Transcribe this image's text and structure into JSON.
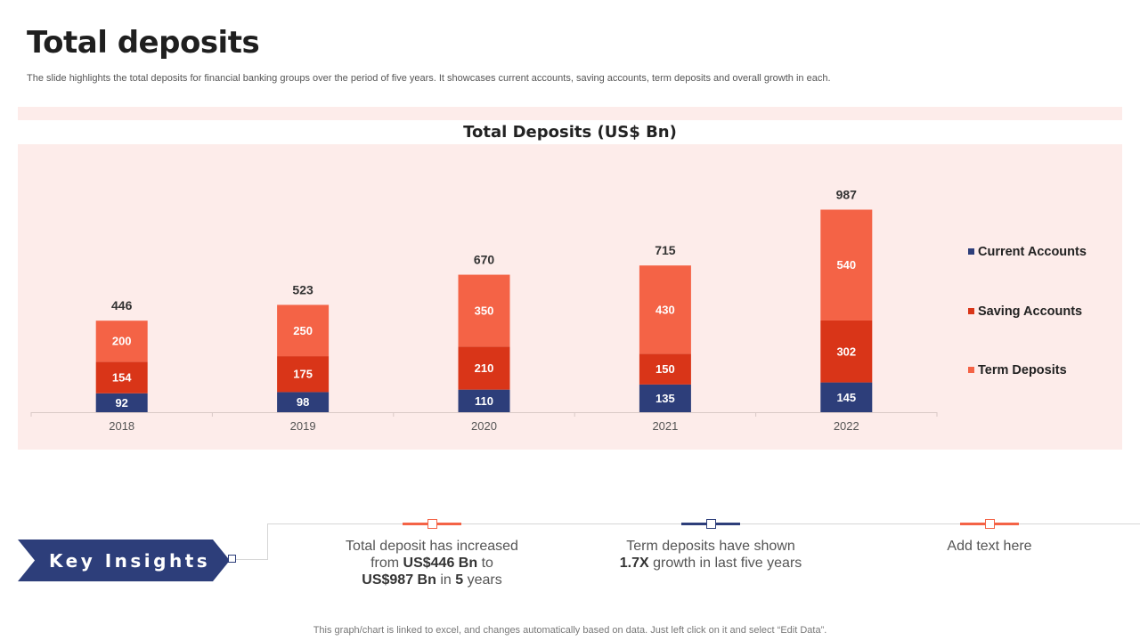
{
  "page": {
    "title": "Total deposits",
    "subtitle": "The slide highlights the total deposits for financial banking groups over the period of five years. It showcases current accounts, saving accounts, term deposits and overall growth in each.",
    "footnote": "This graph/chart is linked to excel,  and changes automatically based on data. Just left click on it and select “Edit Data”."
  },
  "colors": {
    "current": "#2d3e7a",
    "saving": "#d93518",
    "term": "#f46346",
    "panel": "#fdecea",
    "accent_red": "#f46346",
    "accent_blue": "#2d3e7a"
  },
  "chart_data": {
    "type": "bar",
    "stacked": true,
    "title": "Total Deposits (US$ Bn)",
    "xlabel": "",
    "ylabel": "",
    "categories": [
      "2018",
      "2019",
      "2020",
      "2021",
      "2022"
    ],
    "series": [
      {
        "name": "Current Accounts",
        "key": "current",
        "values": [
          92,
          98,
          110,
          135,
          145
        ]
      },
      {
        "name": "Saving Accounts",
        "key": "saving",
        "values": [
          154,
          175,
          210,
          150,
          302
        ]
      },
      {
        "name": "Term Deposits",
        "key": "term",
        "values": [
          200,
          250,
          350,
          430,
          540
        ]
      }
    ],
    "totals": [
      446,
      523,
      670,
      715,
      987
    ],
    "ylim": [
      0,
      1200
    ],
    "grid": false,
    "legend_position": "right"
  },
  "insights": {
    "banner_label": "Key Insights",
    "items": [
      {
        "parts": [
          {
            "text": "Total deposit has increased",
            "bold": false,
            "br": true
          },
          {
            "text": "from ",
            "bold": false
          },
          {
            "text": "US$446 Bn",
            "bold": true
          },
          {
            "text": " to",
            "bold": false,
            "br": true
          },
          {
            "text": "US$987 Bn",
            "bold": true
          },
          {
            "text": " in ",
            "bold": false
          },
          {
            "text": "5",
            "bold": true
          },
          {
            "text": " years",
            "bold": false
          }
        ]
      },
      {
        "parts": [
          {
            "text": "Term deposits have shown",
            "bold": false,
            "br": true
          },
          {
            "text": "1.7X",
            "bold": true
          },
          {
            "text": " growth  in last five years",
            "bold": false
          }
        ]
      },
      {
        "parts": [
          {
            "text": "Add text here",
            "bold": false
          }
        ]
      }
    ]
  }
}
